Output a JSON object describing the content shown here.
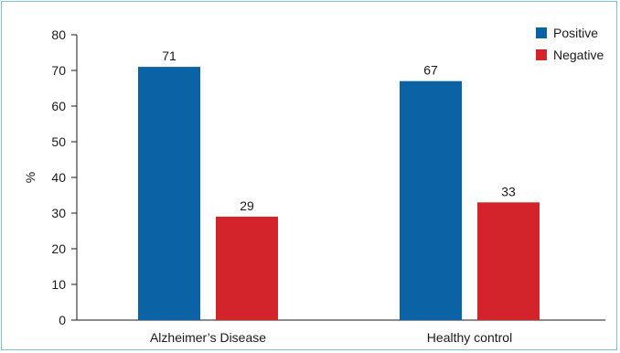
{
  "chart_data": {
    "type": "bar",
    "categories": [
      "Alzheimer’s Disease",
      "Healthy control"
    ],
    "series": [
      {
        "name": "Positive",
        "values": [
          71,
          67
        ],
        "color": "#0b62a4"
      },
      {
        "name": "Negative",
        "values": [
          29,
          33
        ],
        "color": "#d3232b"
      }
    ],
    "ylabel": "%",
    "ylim": [
      0,
      80
    ],
    "yticks": [
      0,
      10,
      20,
      30,
      40,
      50,
      60,
      70,
      80
    ],
    "grid": false,
    "legend_position": "top-right",
    "data_labels": true
  }
}
